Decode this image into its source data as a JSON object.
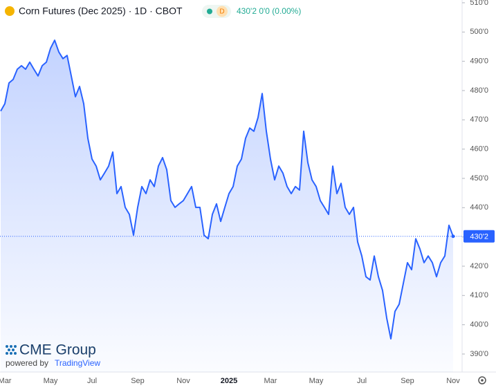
{
  "chart_data": {
    "type": "line",
    "title": "Corn Futures (Dec 2025) · 1D · CBOT",
    "interval": "D",
    "quote": "430'2 0'0 (0.00%)",
    "logo": "CME Group",
    "credit_prefix": "powered by",
    "credit": "TradingView",
    "color": "#2962ff",
    "last_value_label": "430'2",
    "categories": [
      null,
      "Mar",
      null,
      null,
      null,
      null,
      null,
      null,
      null,
      null,
      null,
      null,
      "May",
      null,
      null,
      null,
      null,
      null,
      null,
      null,
      null,
      null,
      "Jul",
      null,
      null,
      null,
      null,
      null,
      null,
      null,
      null,
      null,
      null,
      "Sep",
      null,
      null,
      null,
      null,
      null,
      null,
      null,
      null,
      null,
      null,
      "Nov",
      null,
      null,
      null,
      null,
      null,
      null,
      null,
      null,
      null,
      null,
      "2025",
      null,
      null,
      null,
      null,
      null,
      null,
      null,
      null,
      null,
      "Mar",
      null,
      null,
      null,
      null,
      null,
      null,
      null,
      null,
      null,
      null,
      "May",
      null,
      null,
      null,
      null,
      null,
      null,
      null,
      null,
      null,
      null,
      "Jul",
      null,
      null,
      null,
      null,
      null,
      null,
      null,
      null,
      null,
      null,
      "Sep",
      null,
      null,
      null,
      null,
      null,
      null,
      null,
      null,
      null,
      null,
      "Nov"
    ],
    "values": [
      473,
      475.5,
      482.6,
      483.8,
      487.3,
      488.5,
      487.3,
      489.7,
      487.3,
      485,
      488.5,
      489.7,
      494.4,
      497.2,
      493.2,
      490.9,
      492,
      485,
      477.9,
      481.4,
      475.5,
      463.7,
      456.6,
      454.2,
      449.5,
      451.8,
      454.2,
      459,
      444.8,
      447.2,
      440.1,
      437.7,
      430.6,
      440.1,
      447.2,
      444.8,
      449.5,
      447.2,
      454.2,
      457.1,
      453,
      442.4,
      440.1,
      441.3,
      442.4,
      444.8,
      447.2,
      440.1,
      440.1,
      430.6,
      429.4,
      437.7,
      441.3,
      435.3,
      440.1,
      444.8,
      447.2,
      454.2,
      456.6,
      463.7,
      467.2,
      466.1,
      470.8,
      479,
      466.1,
      456.6,
      449.5,
      454.2,
      451.8,
      447.2,
      444.8,
      447.2,
      446,
      466.1,
      455.4,
      449.5,
      447.2,
      442.4,
      440.1,
      437.7,
      454.2,
      444.8,
      448.3,
      440.1,
      437.7,
      440.1,
      428.3,
      423.5,
      416.4,
      415.3,
      423.5,
      416.4,
      411.7,
      402.3,
      395.2,
      404.6,
      407,
      414.1,
      421.2,
      418.8,
      429.4,
      425.9,
      421.2,
      423.5,
      421.2,
      416.4,
      421.2,
      423.5,
      434,
      430.2
    ],
    "ylim": [
      383.85,
      510.94
    ],
    "yticks": [
      {
        "value": 390,
        "label": "390'0"
      },
      {
        "value": 400,
        "label": "400'0"
      },
      {
        "value": 410,
        "label": "410'0"
      },
      {
        "value": 420,
        "label": "420'0"
      },
      {
        "value": 430,
        "label": "430'0"
      },
      {
        "value": 440,
        "label": "440'0"
      },
      {
        "value": 450,
        "label": "450'0"
      },
      {
        "value": 460,
        "label": "460'0"
      },
      {
        "value": 470,
        "label": "470'0"
      },
      {
        "value": 480,
        "label": "480'0"
      },
      {
        "value": 490,
        "label": "490'0"
      },
      {
        "value": 500,
        "label": "500'0"
      },
      {
        "value": 510,
        "label": "510'0"
      }
    ]
  }
}
